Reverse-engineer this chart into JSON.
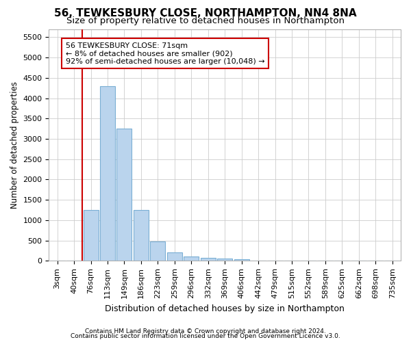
{
  "title1": "56, TEWKESBURY CLOSE, NORTHAMPTON, NN4 8NA",
  "title2": "Size of property relative to detached houses in Northampton",
  "xlabel": "Distribution of detached houses by size in Northampton",
  "ylabel": "Number of detached properties",
  "categories": [
    "3sqm",
    "40sqm",
    "76sqm",
    "113sqm",
    "149sqm",
    "186sqm",
    "223sqm",
    "259sqm",
    "296sqm",
    "332sqm",
    "369sqm",
    "406sqm",
    "442sqm",
    "479sqm",
    "515sqm",
    "552sqm",
    "589sqm",
    "625sqm",
    "662sqm",
    "698sqm",
    "735sqm"
  ],
  "values": [
    0,
    0,
    1250,
    4300,
    3250,
    1250,
    480,
    210,
    100,
    80,
    60,
    40,
    0,
    0,
    0,
    0,
    0,
    0,
    0,
    0,
    0
  ],
  "bar_color": "#bad4ed",
  "bar_edge_color": "#7aafd4",
  "red_line_x": 2,
  "annotation_box_text": "56 TEWKESBURY CLOSE: 71sqm\n← 8% of detached houses are smaller (902)\n92% of semi-detached houses are larger (10,048) →",
  "annotation_box_color": "#ffffff",
  "annotation_box_edge_color": "#cc0000",
  "ylim": [
    0,
    5700
  ],
  "yticks": [
    0,
    500,
    1000,
    1500,
    2000,
    2500,
    3000,
    3500,
    4000,
    4500,
    5000,
    5500
  ],
  "background_color": "#ffffff",
  "grid_color": "#cccccc",
  "footer1": "Contains HM Land Registry data © Crown copyright and database right 2024.",
  "footer2": "Contains public sector information licensed under the Open Government Licence v3.0.",
  "title1_fontsize": 11,
  "title2_fontsize": 9.5,
  "xlabel_fontsize": 9,
  "ylabel_fontsize": 8.5,
  "tick_fontsize": 8,
  "annotation_fontsize": 8
}
